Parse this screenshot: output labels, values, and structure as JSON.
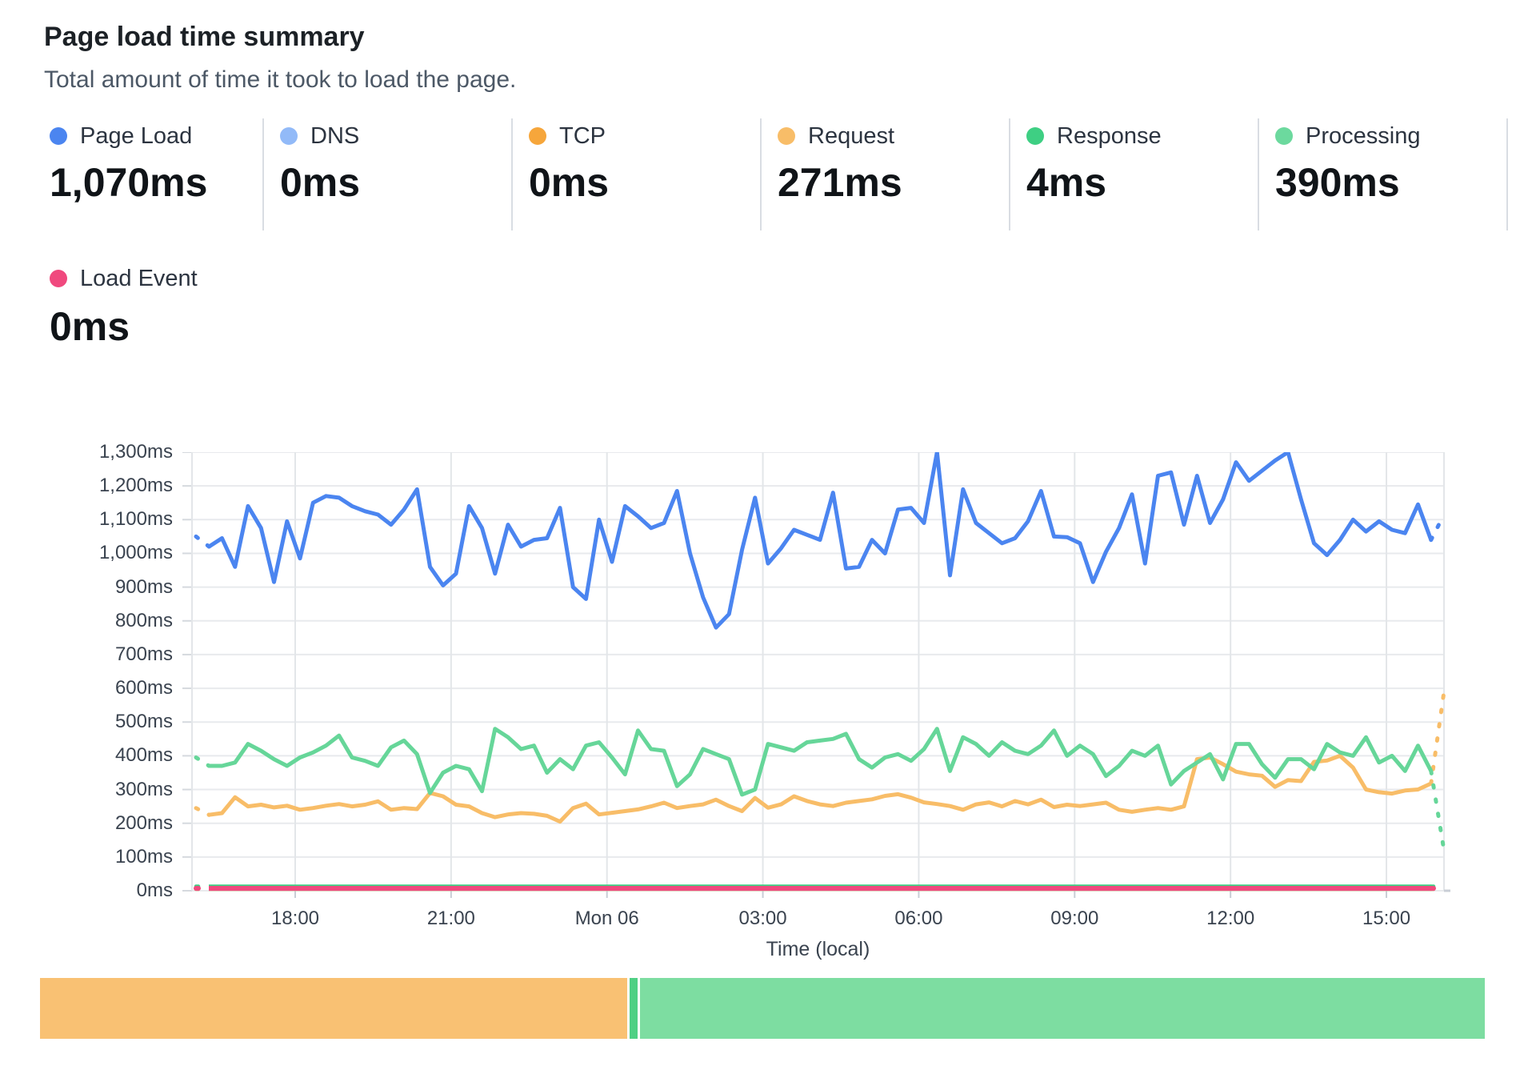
{
  "header": {
    "title": "Page load time summary",
    "subtitle": "Total amount of time it took to load the page."
  },
  "summary": {
    "metrics": [
      {
        "label": "Page Load",
        "value": "1,070ms",
        "color": "#4b85f0"
      },
      {
        "label": "DNS",
        "value": "0ms",
        "color": "#92baf8"
      },
      {
        "label": "TCP",
        "value": "0ms",
        "color": "#f6a63b"
      },
      {
        "label": "Request",
        "value": "271ms",
        "color": "#f8bd68"
      },
      {
        "label": "Response",
        "value": "4ms",
        "color": "#3ecf83"
      },
      {
        "label": "Processing",
        "value": "390ms",
        "color": "#6cd99e"
      }
    ],
    "overflow_metrics": [
      {
        "label": "Load Event",
        "value": "0ms",
        "color": "#f0497e"
      }
    ]
  },
  "chart_data": {
    "type": "line",
    "title": "Page load time summary",
    "xlabel": "Time (local)",
    "ylabel": "",
    "ylim": [
      0,
      1300
    ],
    "y_tick_step": 100,
    "y_tick_labels": [
      "0ms",
      "100ms",
      "200ms",
      "300ms",
      "400ms",
      "500ms",
      "600ms",
      "700ms",
      "800ms",
      "900ms",
      "1,000ms",
      "1,100ms",
      "1,200ms",
      "1,300ms"
    ],
    "x_tick_labels": [
      "18:00",
      "21:00",
      "Mon 06",
      "03:00",
      "06:00",
      "09:00",
      "12:00",
      "15:00"
    ],
    "x_range": [
      "Sun 16:00",
      "Mon 16:00"
    ],
    "interval_minutes": 15,
    "grid": true,
    "edge_buckets_dashed": true,
    "series": [
      {
        "name": "DNS",
        "color": "#92baf8",
        "constant_value": 0
      },
      {
        "name": "TCP",
        "color": "#f6a63b",
        "constant_value": 0
      },
      {
        "name": "Response",
        "color": "#3ecf83",
        "constant_value": 4
      },
      {
        "name": "Load Event",
        "color": "#f0497e",
        "constant_value": 0
      },
      {
        "name": "Request",
        "color": "#f8bd68",
        "values": [
          245,
          225,
          230,
          277,
          250,
          255,
          247,
          252,
          240,
          245,
          252,
          257,
          250,
          255,
          265,
          240,
          245,
          242,
          290,
          280,
          255,
          250,
          230,
          218,
          226,
          230,
          228,
          222,
          205,
          245,
          258,
          226,
          231,
          236,
          241,
          250,
          261,
          245,
          251,
          256,
          270,
          251,
          236,
          275,
          246,
          256,
          280,
          266,
          256,
          251,
          261,
          266,
          271,
          281,
          286,
          276,
          262,
          257,
          251,
          240,
          256,
          262,
          250,
          266,
          256,
          270,
          248,
          255,
          251,
          256,
          261,
          240,
          234,
          240,
          245,
          240,
          250,
          390,
          395,
          375,
          353,
          345,
          341,
          308,
          328,
          325,
          382,
          386,
          400,
          365,
          300,
          292,
          288,
          297,
          300,
          318,
          590
        ]
      },
      {
        "name": "Processing",
        "color": "#66d699",
        "values": [
          395,
          370,
          370,
          380,
          435,
          415,
          390,
          370,
          395,
          410,
          430,
          460,
          395,
          385,
          370,
          425,
          445,
          405,
          290,
          350,
          370,
          360,
          295,
          480,
          455,
          420,
          430,
          350,
          390,
          360,
          430,
          440,
          395,
          345,
          475,
          420,
          415,
          310,
          345,
          420,
          405,
          390,
          285,
          300,
          435,
          425,
          415,
          440,
          445,
          450,
          465,
          390,
          365,
          395,
          405,
          385,
          420,
          480,
          355,
          455,
          435,
          400,
          440,
          415,
          405,
          430,
          475,
          400,
          430,
          405,
          340,
          370,
          415,
          400,
          430,
          315,
          355,
          380,
          405,
          330,
          435,
          435,
          375,
          335,
          390,
          390,
          360,
          435,
          410,
          400,
          455,
          380,
          400,
          355,
          430,
          355,
          120
        ]
      },
      {
        "name": "Page Load",
        "color": "#4b85f0",
        "values": [
          1050,
          1020,
          1045,
          960,
          1140,
          1075,
          915,
          1095,
          985,
          1150,
          1170,
          1165,
          1140,
          1125,
          1115,
          1085,
          1130,
          1190,
          960,
          905,
          940,
          1140,
          1075,
          940,
          1085,
          1020,
          1040,
          1045,
          1135,
          900,
          865,
          1100,
          975,
          1140,
          1110,
          1075,
          1090,
          1185,
          1000,
          870,
          780,
          820,
          1010,
          1165,
          970,
          1015,
          1070,
          1055,
          1040,
          1180,
          955,
          960,
          1040,
          1000,
          1130,
          1135,
          1090,
          1300,
          935,
          1190,
          1090,
          1060,
          1030,
          1045,
          1095,
          1185,
          1050,
          1048,
          1030,
          915,
          1005,
          1075,
          1175,
          970,
          1230,
          1240,
          1085,
          1230,
          1090,
          1160,
          1270,
          1215,
          1245,
          1275,
          1300,
          1160,
          1030,
          995,
          1040,
          1100,
          1065,
          1095,
          1070,
          1060,
          1145,
          1040,
          1115
        ]
      }
    ]
  },
  "footer_bar": {
    "segments": [
      {
        "name": "Request",
        "color": "#f9c173",
        "percent": 40.75
      },
      {
        "name": "Response",
        "color": "#4fd084",
        "percent": 0.6
      },
      {
        "name": "Processing",
        "color": "#7ddda1",
        "percent": 58.65
      }
    ]
  }
}
